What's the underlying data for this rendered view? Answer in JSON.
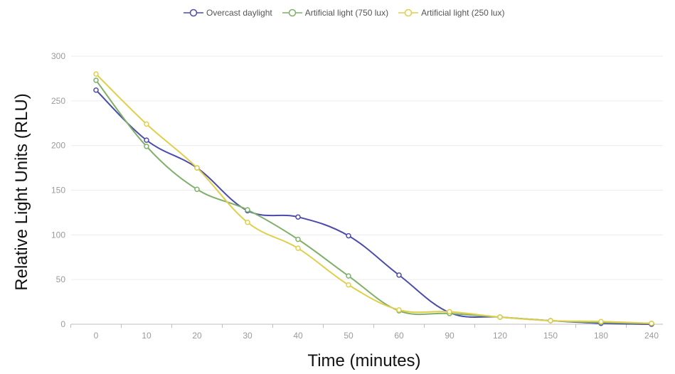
{
  "chart_data": {
    "type": "line",
    "xlabel": "Time (minutes)",
    "ylabel": "Relative Light Units (RLU)",
    "categories": [
      "0",
      "10",
      "20",
      "30",
      "40",
      "50",
      "60",
      "90",
      "120",
      "150",
      "180",
      "240"
    ],
    "ylim": [
      0,
      300
    ],
    "yticks": [
      0,
      50,
      100,
      150,
      200,
      250,
      300
    ],
    "grid": true,
    "legend_position": "top",
    "series": [
      {
        "name": "Overcast daylight",
        "color": "#4b4bab",
        "values": [
          262,
          206,
          175,
          127,
          120,
          99,
          55,
          13,
          8,
          4,
          1,
          0
        ]
      },
      {
        "name": "Artificial light (750 lux)",
        "color": "#7fb069",
        "values": [
          273,
          199,
          151,
          128,
          95,
          54,
          15,
          12,
          8,
          4,
          2,
          1
        ]
      },
      {
        "name": "Artificial light (250 lux)",
        "color": "#e0cf4a",
        "values": [
          280,
          224,
          175,
          114,
          85,
          44,
          16,
          14,
          8,
          4,
          3,
          1
        ]
      }
    ]
  }
}
